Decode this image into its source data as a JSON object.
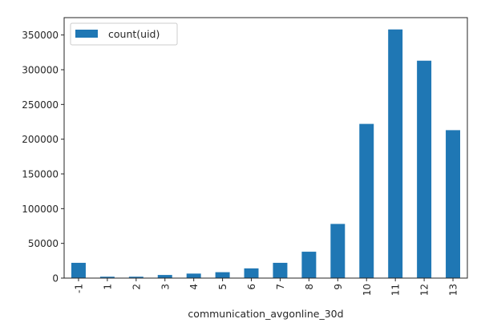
{
  "chart_data": {
    "type": "bar",
    "categories": [
      "-1",
      "1",
      "2",
      "3",
      "4",
      "5",
      "6",
      "7",
      "8",
      "9",
      "10",
      "11",
      "12",
      "13"
    ],
    "series": [
      {
        "name": "count(uid)",
        "values": [
          22000,
          2000,
          2000,
          4500,
          6500,
          8500,
          14000,
          22000,
          38000,
          78000,
          222000,
          358000,
          313000,
          213000
        ]
      }
    ],
    "xlabel": "communication_avgonline_30d",
    "ylabel": "",
    "ylim": [
      0,
      375000
    ],
    "yticks": [
      "0",
      "50000",
      "100000",
      "150000",
      "200000",
      "250000",
      "300000",
      "350000"
    ],
    "legend_position": "top-left",
    "grid": false,
    "colors": {
      "bar": "#1f77b4",
      "axes": "#262626"
    }
  }
}
